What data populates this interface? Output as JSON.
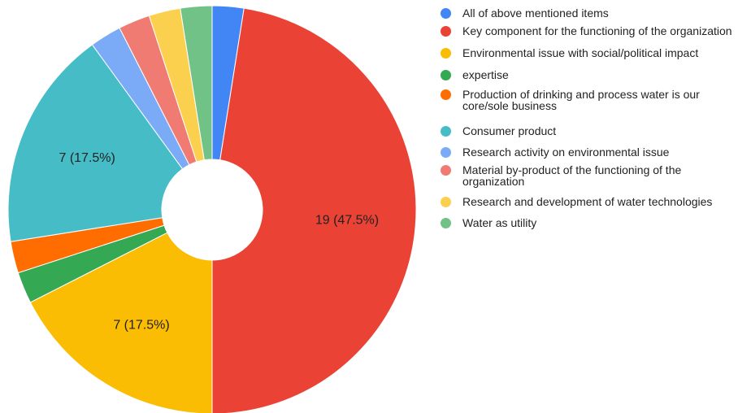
{
  "chart_data": {
    "type": "pie",
    "donut": true,
    "legend_position": "right",
    "categories": [
      "All of above mentioned items",
      "Key component for the functioning of the organization",
      "Environmental issue with social/political impact",
      "expertise",
      "Production of drinking and process water is our core/sole business",
      "Consumer product",
      "Research activity on environmental issue",
      "Material by-product of the functioning of the organization",
      "Research and development of water technologies",
      "Water as utility"
    ],
    "values": [
      1,
      19,
      7,
      1,
      1,
      7,
      1,
      1,
      1,
      1
    ],
    "colors": [
      "#4285f4",
      "#ea4335",
      "#fbbc04",
      "#34a853",
      "#ff6d01",
      "#46bdc6",
      "#7baaf7",
      "#f07b72",
      "#fcd04f",
      "#71c287"
    ],
    "data_labels": [
      "",
      "19 (47.5%)",
      "7 (17.5%)",
      "",
      "",
      "7 (17.5%)",
      "",
      "",
      "",
      ""
    ]
  },
  "legend": {
    "items": [
      {
        "label": "All of above mentioned items",
        "color": "#4285f4"
      },
      {
        "label": "Key component for the functioning of the organization",
        "color": "#ea4335"
      },
      {
        "label": "Environmental issue with social/political impact",
        "color": "#fbbc04"
      },
      {
        "label": "expertise",
        "color": "#34a853"
      },
      {
        "label": "Production of drinking and process water is our core/sole business",
        "color": "#ff6d01"
      },
      {
        "label": "Consumer product",
        "color": "#46bdc6"
      },
      {
        "label": "Research activity on environmental issue",
        "color": "#7baaf7"
      },
      {
        "label": "Material by-product of the functioning of the organization",
        "color": "#f07b72"
      },
      {
        "label": "Research and development of water technologies",
        "color": "#fcd04f"
      },
      {
        "label": "Water as utility",
        "color": "#71c287"
      }
    ]
  }
}
